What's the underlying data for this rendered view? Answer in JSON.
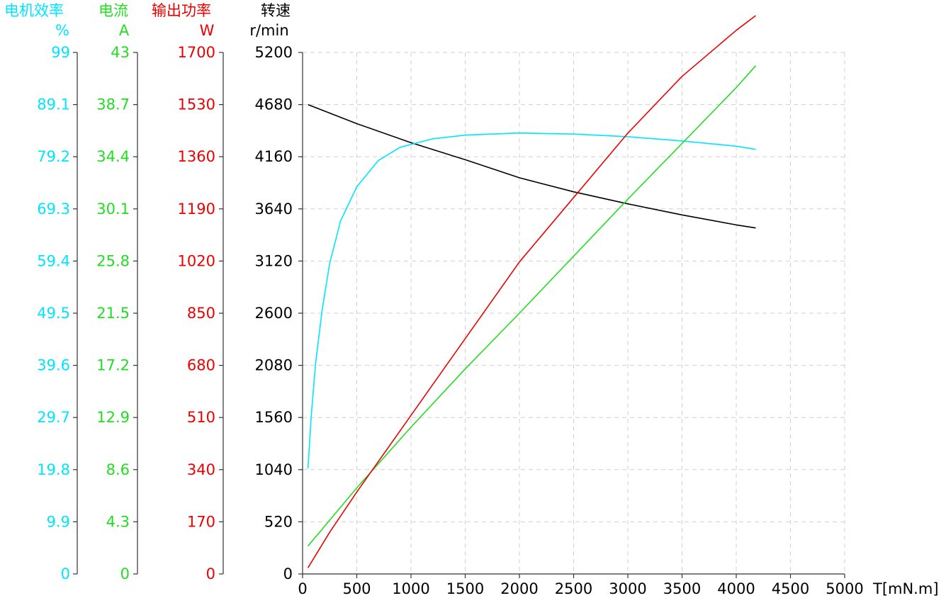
{
  "chart_data": {
    "type": "line",
    "x": {
      "label": "T[mN.m]",
      "range": [
        0,
        5000
      ],
      "ticks": [
        "0",
        "500",
        "1000",
        "1500",
        "2000",
        "2500",
        "3000",
        "3500",
        "4000",
        "4500",
        "5000"
      ]
    },
    "axes": [
      {
        "id": "efficiency",
        "title": "电机效率",
        "unit": "%",
        "color": "#00e5ff",
        "range": [
          0,
          99
        ],
        "ticks": [
          "0",
          "9.9",
          "19.8",
          "29.7",
          "39.6",
          "49.5",
          "59.4",
          "69.3",
          "79.2",
          "89.1",
          "99"
        ]
      },
      {
        "id": "current",
        "title": "电流",
        "unit": "A",
        "color": "#22dd22",
        "range": [
          0,
          43
        ],
        "ticks": [
          "0",
          "4.3",
          "8.6",
          "12.9",
          "17.2",
          "21.5",
          "25.8",
          "30.1",
          "34.4",
          "38.7",
          "43"
        ]
      },
      {
        "id": "power",
        "title": "输出功率",
        "unit": "W",
        "color": "#ee0000",
        "range": [
          0,
          1700
        ],
        "ticks": [
          "0",
          "170",
          "340",
          "510",
          "680",
          "850",
          "1020",
          "1190",
          "1360",
          "1530",
          "1700"
        ]
      },
      {
        "id": "speed",
        "title": "转速",
        "unit": "r/min",
        "color": "#000000",
        "range": [
          0,
          5200
        ],
        "ticks": [
          "0",
          "520",
          "1040",
          "1560",
          "2080",
          "2600",
          "3120",
          "3640",
          "4160",
          "4680",
          "5200"
        ]
      }
    ],
    "series": [
      {
        "axis": "speed",
        "color": "#000000",
        "points": [
          [
            50,
            4680
          ],
          [
            500,
            4490
          ],
          [
            1000,
            4300
          ],
          [
            1500,
            4130
          ],
          [
            2000,
            3950
          ],
          [
            2500,
            3810
          ],
          [
            3000,
            3690
          ],
          [
            3500,
            3580
          ],
          [
            4000,
            3480
          ],
          [
            4180,
            3450
          ]
        ]
      },
      {
        "axis": "efficiency",
        "color": "#00e5ff",
        "points": [
          [
            50,
            20
          ],
          [
            80,
            30
          ],
          [
            120,
            40
          ],
          [
            180,
            50
          ],
          [
            250,
            59
          ],
          [
            350,
            67
          ],
          [
            500,
            73.5
          ],
          [
            700,
            78.5
          ],
          [
            900,
            81
          ],
          [
            1200,
            82.6
          ],
          [
            1500,
            83.3
          ],
          [
            2000,
            83.7
          ],
          [
            2500,
            83.5
          ],
          [
            3000,
            83
          ],
          [
            3500,
            82.2
          ],
          [
            4000,
            81.2
          ],
          [
            4180,
            80.6
          ]
        ]
      },
      {
        "axis": "current",
        "color": "#22dd22",
        "points": [
          [
            50,
            2.3
          ],
          [
            500,
            7.1
          ],
          [
            1000,
            12.1
          ],
          [
            1500,
            16.9
          ],
          [
            2000,
            21.5
          ],
          [
            2500,
            26.2
          ],
          [
            3000,
            30.9
          ],
          [
            3500,
            35.5
          ],
          [
            4000,
            40.1
          ],
          [
            4180,
            41.9
          ]
        ]
      },
      {
        "axis": "power",
        "color": "#ee0000",
        "points": [
          [
            50,
            20
          ],
          [
            250,
            136
          ],
          [
            500,
            267
          ],
          [
            1000,
            517
          ],
          [
            1500,
            767
          ],
          [
            2000,
            1017
          ],
          [
            2500,
            1227
          ],
          [
            3000,
            1437
          ],
          [
            3500,
            1622
          ],
          [
            4000,
            1772
          ],
          [
            4180,
            1820
          ]
        ]
      }
    ]
  }
}
